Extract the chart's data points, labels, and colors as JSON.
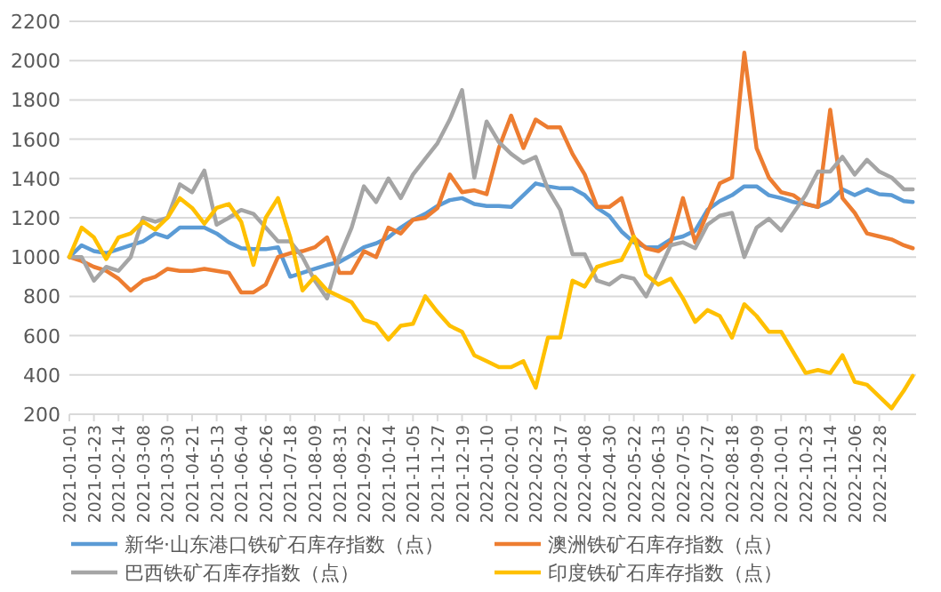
{
  "chart_data": {
    "type": "line",
    "x": [
      "2021-01-01",
      "2021-01-12",
      "2021-01-23",
      "2021-02-03",
      "2021-02-14",
      "2021-02-25",
      "2021-03-08",
      "2021-03-19",
      "2021-03-30",
      "2021-04-10",
      "2021-04-21",
      "2021-05-02",
      "2021-05-13",
      "2021-05-24",
      "2021-06-04",
      "2021-06-15",
      "2021-06-26",
      "2021-07-07",
      "2021-07-18",
      "2021-07-29",
      "2021-08-09",
      "2021-08-20",
      "2021-08-31",
      "2021-09-11",
      "2021-09-22",
      "2021-10-03",
      "2021-10-14",
      "2021-10-25",
      "2021-11-05",
      "2021-11-16",
      "2021-11-27",
      "2021-12-08",
      "2021-12-19",
      "2021-12-30",
      "2022-01-10",
      "2022-01-21",
      "2022-02-01",
      "2022-02-12",
      "2022-02-23",
      "2022-03-06",
      "2022-03-17",
      "2022-03-28",
      "2022-04-08",
      "2022-04-19",
      "2022-04-30",
      "2022-05-11",
      "2022-05-22",
      "2022-06-02",
      "2022-06-13",
      "2022-06-24",
      "2022-07-05",
      "2022-07-16",
      "2022-07-27",
      "2022-08-07",
      "2022-08-18",
      "2022-08-29",
      "2022-09-09",
      "2022-09-20",
      "2022-10-01",
      "2022-10-12",
      "2022-10-23",
      "2022-11-03",
      "2022-11-14",
      "2022-11-25",
      "2022-12-06",
      "2022-12-17",
      "2022-12-28",
      "2023-01-08",
      "2023-01-19",
      "2023-01-27"
    ],
    "series": [
      {
        "name": "新华·山东港口铁矿石库存指数（点）",
        "color": "#5b9bd5",
        "values": [
          1000,
          1060,
          1030,
          1020,
          1040,
          1060,
          1080,
          1120,
          1100,
          1150,
          1150,
          1150,
          1120,
          1075,
          1045,
          1040,
          1040,
          1050,
          900,
          920,
          940,
          960,
          975,
          1010,
          1050,
          1070,
          1100,
          1150,
          1190,
          1220,
          1260,
          1290,
          1300,
          1270,
          1260,
          1260,
          1255,
          1315,
          1375,
          1360,
          1350,
          1350,
          1315,
          1250,
          1210,
          1130,
          1075,
          1050,
          1050,
          1090,
          1105,
          1135,
          1240,
          1285,
          1315,
          1360,
          1360,
          1315,
          1300,
          1280,
          1270,
          1255,
          1285,
          1345,
          1315,
          1345,
          1320,
          1315,
          1285,
          1280
        ]
      },
      {
        "name": "澳洲铁矿石库存指数（点）",
        "color": "#ed7d31",
        "values": [
          1000,
          980,
          950,
          930,
          890,
          830,
          880,
          900,
          940,
          930,
          930,
          940,
          930,
          920,
          820,
          820,
          860,
          1000,
          1020,
          1030,
          1050,
          1100,
          920,
          920,
          1030,
          1000,
          1150,
          1120,
          1190,
          1200,
          1250,
          1420,
          1330,
          1340,
          1320,
          1555,
          1720,
          1555,
          1700,
          1660,
          1660,
          1525,
          1420,
          1255,
          1255,
          1300,
          1100,
          1045,
          1030,
          1075,
          1300,
          1075,
          1225,
          1375,
          1405,
          2040,
          1555,
          1405,
          1330,
          1315,
          1270,
          1255,
          1750,
          1300,
          1225,
          1120,
          1105,
          1090,
          1060,
          1045
        ]
      },
      {
        "name": "巴西铁矿石库存指数（点）",
        "color": "#a5a5a5",
        "values": [
          1000,
          1000,
          880,
          950,
          930,
          1000,
          1200,
          1180,
          1200,
          1370,
          1330,
          1440,
          1165,
          1200,
          1240,
          1220,
          1150,
          1080,
          1080,
          1000,
          880,
          790,
          1000,
          1150,
          1360,
          1280,
          1400,
          1300,
          1420,
          1500,
          1580,
          1700,
          1850,
          1405,
          1690,
          1585,
          1525,
          1480,
          1510,
          1345,
          1240,
          1015,
          1015,
          880,
          860,
          905,
          890,
          800,
          925,
          1060,
          1075,
          1045,
          1165,
          1210,
          1225,
          1000,
          1150,
          1195,
          1135,
          1225,
          1315,
          1435,
          1435,
          1510,
          1420,
          1495,
          1435,
          1405,
          1345,
          1345
        ]
      },
      {
        "name": "印度铁矿石库存指数（点）",
        "color": "#ffc000",
        "values": [
          1000,
          1150,
          1100,
          990,
          1100,
          1120,
          1180,
          1140,
          1200,
          1300,
          1250,
          1170,
          1250,
          1270,
          1180,
          960,
          1200,
          1300,
          1100,
          830,
          900,
          830,
          800,
          770,
          680,
          660,
          580,
          650,
          660,
          800,
          720,
          650,
          620,
          500,
          470,
          440,
          440,
          470,
          335,
          590,
          590,
          880,
          850,
          950,
          970,
          985,
          1105,
          910,
          860,
          890,
          790,
          670,
          730,
          700,
          590,
          760,
          700,
          620,
          620,
          515,
          410,
          425,
          410,
          500,
          365,
          350,
          290,
          230,
          320,
          395
        ]
      }
    ],
    "xlim": [
      "2021-01-01",
      "2023-01-30"
    ],
    "xticks": [
      "2021-01-01",
      "2021-01-23",
      "2021-02-14",
      "2021-03-08",
      "2021-03-30",
      "2021-04-21",
      "2021-05-13",
      "2021-06-04",
      "2021-06-26",
      "2021-07-18",
      "2021-08-09",
      "2021-08-31",
      "2021-09-22",
      "2021-10-14",
      "2021-11-05",
      "2021-11-27",
      "2021-12-19",
      "2022-01-10",
      "2022-02-01",
      "2022-02-23",
      "2022-03-17",
      "2022-04-08",
      "2022-04-30",
      "2022-05-22",
      "2022-06-13",
      "2022-07-05",
      "2022-07-27",
      "2022-08-18",
      "2022-09-09",
      "2022-10-01",
      "2022-10-23",
      "2022-11-14",
      "2022-12-06",
      "2022-12-28"
    ],
    "ylim": [
      200,
      2200
    ],
    "yticks": [
      200,
      400,
      600,
      800,
      1000,
      1200,
      1400,
      1600,
      1800,
      2000,
      2200
    ],
    "grid": "y",
    "legend": "bottom",
    "marker": "none",
    "line_style": "solid"
  }
}
